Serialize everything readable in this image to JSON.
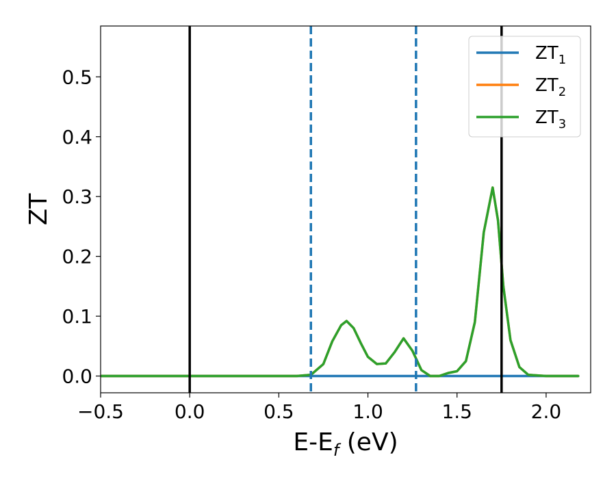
{
  "chart_data": {
    "type": "line",
    "xlabel_main": "E-E",
    "xlabel_sub": "f",
    "xlabel_unit": " (eV)",
    "ylabel": "ZT",
    "xlim": [
      -0.5,
      2.25
    ],
    "ylim": [
      -0.028,
      0.585
    ],
    "x_ticks": [
      -0.5,
      0.0,
      0.5,
      1.0,
      1.5,
      2.0
    ],
    "x_tick_labels": [
      "−0.5",
      "0.0",
      "0.5",
      "1.0",
      "1.5",
      "2.0"
    ],
    "y_ticks": [
      0.0,
      0.1,
      0.2,
      0.3,
      0.4,
      0.5
    ],
    "y_tick_labels": [
      "0.0",
      "0.1",
      "0.2",
      "0.3",
      "0.4",
      "0.5"
    ],
    "grid": false,
    "legend_position": "top-right",
    "series": [
      {
        "name_main": "ZT",
        "name_sub": "1",
        "color": "#1f77b4",
        "x": [
          -0.5,
          0.0,
          0.5,
          1.0,
          1.5,
          2.0,
          2.18
        ],
        "y": [
          0,
          0,
          0,
          0,
          0,
          0,
          0
        ]
      },
      {
        "name_main": "ZT",
        "name_sub": "2",
        "color": "#ff7f0e",
        "x": [
          -0.5,
          0.6,
          0.68,
          0.75,
          0.8,
          0.85,
          0.88,
          0.92,
          0.96,
          1.0,
          1.05,
          1.1,
          1.15,
          1.2,
          1.25,
          1.3,
          1.35,
          1.4,
          1.45,
          1.5,
          1.55,
          1.6,
          1.65,
          1.7,
          1.73,
          1.76,
          1.8,
          1.85,
          1.9,
          2.0,
          2.18
        ],
        "y": [
          0,
          0,
          0.002,
          0.02,
          0.058,
          0.085,
          0.092,
          0.08,
          0.055,
          0.032,
          0.02,
          0.021,
          0.04,
          0.063,
          0.042,
          0.01,
          0.0,
          0.0,
          0.005,
          0.008,
          0.025,
          0.09,
          0.24,
          0.315,
          0.26,
          0.15,
          0.06,
          0.015,
          0.002,
          0,
          0
        ]
      },
      {
        "name_main": "ZT",
        "name_sub": "3",
        "color": "#2ca02c",
        "x": [
          -0.5,
          0.6,
          0.68,
          0.75,
          0.8,
          0.85,
          0.88,
          0.92,
          0.96,
          1.0,
          1.05,
          1.1,
          1.15,
          1.2,
          1.25,
          1.3,
          1.35,
          1.4,
          1.45,
          1.5,
          1.55,
          1.6,
          1.65,
          1.7,
          1.73,
          1.76,
          1.8,
          1.85,
          1.9,
          2.0,
          2.18
        ],
        "y": [
          0,
          0,
          0.002,
          0.02,
          0.058,
          0.085,
          0.092,
          0.08,
          0.055,
          0.032,
          0.02,
          0.021,
          0.04,
          0.063,
          0.042,
          0.01,
          0.0,
          0.0,
          0.005,
          0.008,
          0.025,
          0.09,
          0.24,
          0.315,
          0.26,
          0.15,
          0.06,
          0.015,
          0.002,
          0,
          0
        ]
      }
    ],
    "vlines": [
      {
        "x": 0.0,
        "color": "#000000",
        "style": "solid"
      },
      {
        "x": 1.75,
        "color": "#000000",
        "style": "solid"
      },
      {
        "x": 0.68,
        "color": "#1f77b4",
        "style": "dashed"
      },
      {
        "x": 1.27,
        "color": "#1f77b4",
        "style": "dashed"
      }
    ]
  }
}
